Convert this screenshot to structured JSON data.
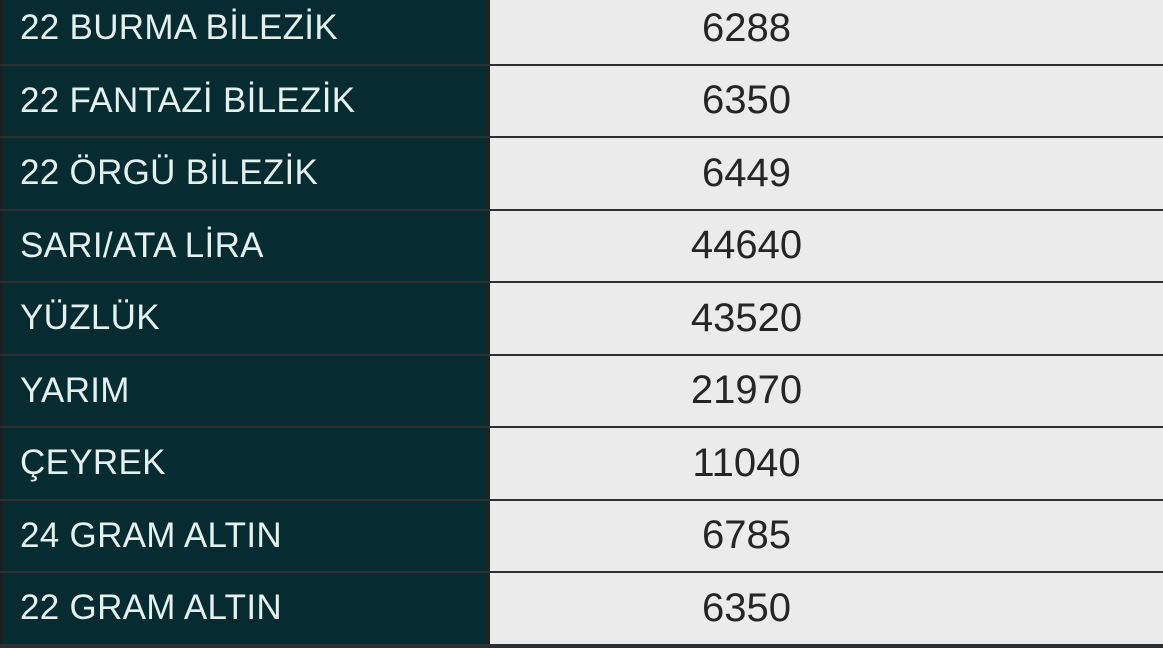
{
  "table": {
    "rows": [
      {
        "name": "22 BURMA BİLEZİK",
        "value": "6288"
      },
      {
        "name": "22 FANTAZİ BİLEZİK",
        "value": "6350"
      },
      {
        "name": "22 ÖRGÜ BİLEZİK",
        "value": "6449"
      },
      {
        "name": "SARI/ATA LİRA",
        "value": "44640"
      },
      {
        "name": "YÜZLÜK",
        "value": "43520"
      },
      {
        "name": "YARIM",
        "value": "21970"
      },
      {
        "name": "ÇEYREK",
        "value": "11040"
      },
      {
        "name": "24 GRAM ALTIN",
        "value": "6785"
      },
      {
        "name": "22 GRAM ALTIN",
        "value": "6350"
      }
    ]
  },
  "colors": {
    "name_bg": "#062c31",
    "value_bg": "#ebebeb"
  }
}
